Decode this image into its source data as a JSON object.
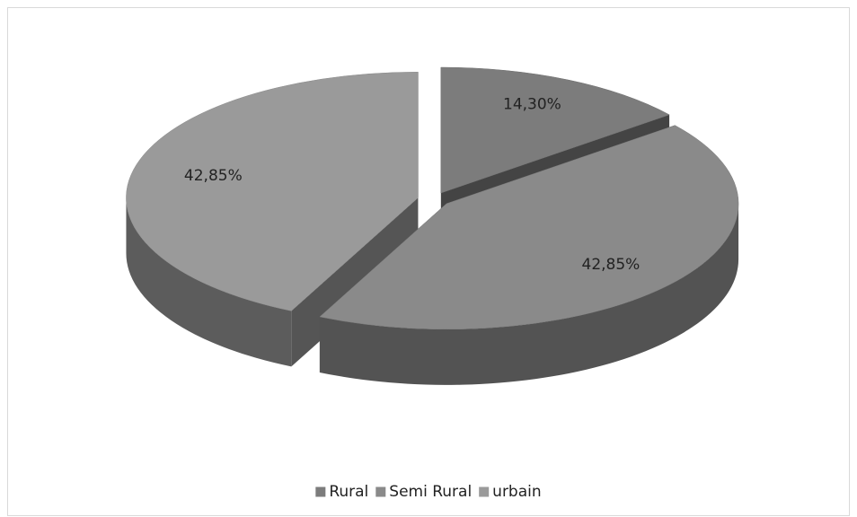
{
  "chart_data": {
    "type": "pie3d",
    "categories": [
      "Rural",
      "Semi Rural",
      "urbain"
    ],
    "values": [
      14.3,
      42.85,
      42.85
    ],
    "value_labels": [
      "14,30%",
      "42,85%",
      "42,85%"
    ],
    "colors": [
      "#7c7c7c",
      "#8a8a8a",
      "#9a9a9a"
    ],
    "legend": "bottom"
  }
}
